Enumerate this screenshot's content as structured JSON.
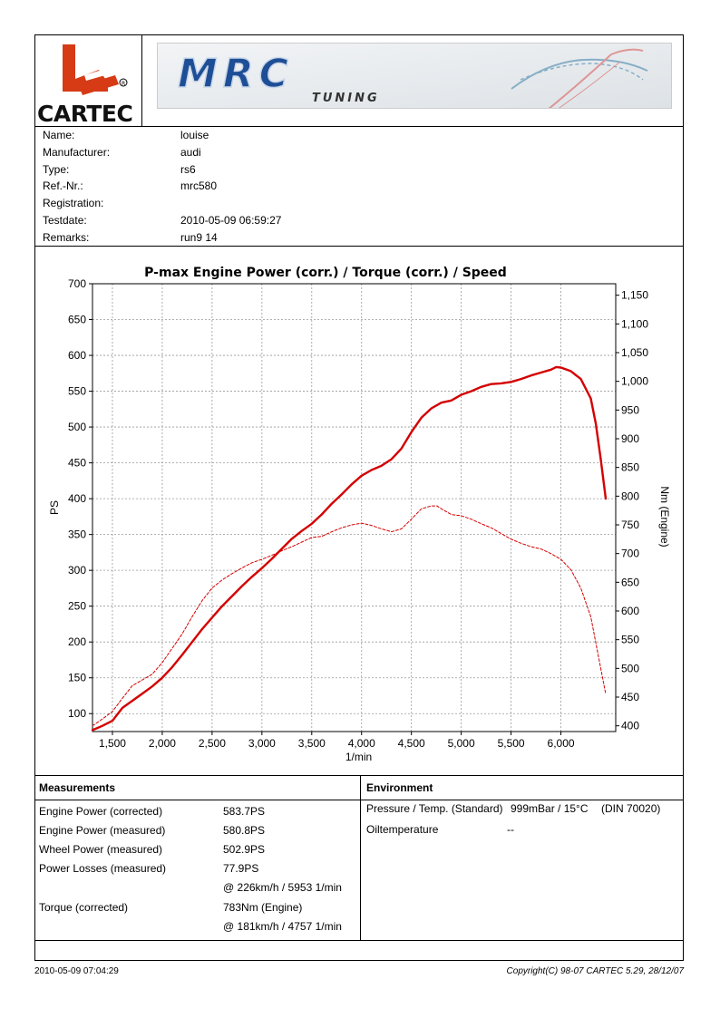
{
  "logo": {
    "brand_text": "CARTEC",
    "banner_text_main": "MRC",
    "banner_text_sub": "TUNING"
  },
  "vehicle": {
    "rows": [
      {
        "label": "Name:",
        "value": "louise"
      },
      {
        "label": "Manufacturer:",
        "value": "audi"
      },
      {
        "label": "Type:",
        "value": "rs6"
      },
      {
        "label": "Ref.-Nr.:",
        "value": "mrc580"
      },
      {
        "label": "Registration:",
        "value": ""
      },
      {
        "label": "Testdate:",
        "value": "2010-05-09 06:59:27"
      },
      {
        "label": "Remarks:",
        "value": "run9 14"
      }
    ]
  },
  "chart_data": {
    "type": "line",
    "title": "P-max Engine Power (corr.) / Torque (corr.) / Speed",
    "xlabel": "1/min",
    "ylabel": "PS",
    "y2label": "Nm (Engine)",
    "xlim": [
      1300,
      6550
    ],
    "ylim": [
      75,
      700
    ],
    "y2lim": [
      390,
      1170
    ],
    "x_ticks": [
      1500,
      2000,
      2500,
      3000,
      3500,
      4000,
      4500,
      5000,
      5500,
      6000
    ],
    "x_tick_labels": [
      "1,500",
      "2,000",
      "2,500",
      "3,000",
      "3,500",
      "4,000",
      "4,500",
      "5,000",
      "5,500",
      "6,000"
    ],
    "y_ticks": [
      100,
      150,
      200,
      250,
      300,
      350,
      400,
      450,
      500,
      550,
      600,
      650,
      700
    ],
    "y_tick_labels": [
      "100",
      "150",
      "200",
      "250",
      "300",
      "350",
      "400",
      "450",
      "500",
      "550",
      "600",
      "650",
      "700"
    ],
    "y2_ticks": [
      400,
      450,
      500,
      550,
      600,
      650,
      700,
      750,
      800,
      850,
      900,
      950,
      1000,
      1050,
      1100,
      1150
    ],
    "y2_tick_labels": [
      "400",
      "450",
      "500",
      "550",
      "600",
      "650",
      "700",
      "750",
      "800",
      "850",
      "900",
      "950",
      "1,000",
      "1,050",
      "1,100",
      "1,150"
    ],
    "grid": true,
    "series": [
      {
        "axis": "y",
        "style": "solid",
        "color": "#d40000",
        "x": [
          1300,
          1400,
          1500,
          1600,
          1700,
          1800,
          1900,
          2000,
          2100,
          2200,
          2300,
          2400,
          2500,
          2600,
          2700,
          2800,
          2900,
          3000,
          3100,
          3200,
          3300,
          3400,
          3500,
          3600,
          3700,
          3800,
          3900,
          4000,
          4100,
          4200,
          4300,
          4400,
          4500,
          4600,
          4700,
          4800,
          4900,
          5000,
          5100,
          5200,
          5300,
          5400,
          5500,
          5600,
          5700,
          5800,
          5900,
          5953,
          6000,
          6100,
          6200,
          6300,
          6350,
          6400,
          6450
        ],
        "values": [
          77,
          83,
          90,
          108,
          118,
          128,
          138,
          150,
          165,
          182,
          200,
          218,
          234,
          250,
          264,
          278,
          291,
          303,
          316,
          330,
          344,
          355,
          365,
          378,
          393,
          406,
          420,
          432,
          440,
          446,
          455,
          470,
          493,
          513,
          526,
          534,
          537,
          545,
          550,
          556,
          560,
          561,
          563,
          567,
          572,
          576,
          580,
          583.7,
          583,
          578,
          567,
          540,
          505,
          455,
          400
        ]
      },
      {
        "axis": "y2",
        "style": "dashed",
        "color": "#d40000",
        "x": [
          1300,
          1400,
          1500,
          1600,
          1700,
          1800,
          1900,
          2000,
          2100,
          2200,
          2300,
          2400,
          2500,
          2600,
          2700,
          2800,
          2900,
          3000,
          3100,
          3200,
          3300,
          3400,
          3500,
          3600,
          3700,
          3800,
          3900,
          4000,
          4100,
          4200,
          4300,
          4400,
          4500,
          4600,
          4700,
          4757,
          4800,
          4900,
          5000,
          5100,
          5200,
          5300,
          5400,
          5500,
          5600,
          5700,
          5800,
          5900,
          6000,
          6100,
          6200,
          6300,
          6350,
          6400,
          6450
        ],
        "values": [
          400,
          412,
          425,
          448,
          470,
          480,
          490,
          510,
          535,
          560,
          590,
          618,
          640,
          654,
          665,
          675,
          684,
          690,
          697,
          705,
          712,
          720,
          728,
          730,
          738,
          745,
          750,
          753,
          749,
          743,
          738,
          743,
          760,
          778,
          783,
          783,
          778,
          768,
          766,
          760,
          752,
          745,
          735,
          725,
          718,
          712,
          708,
          700,
          690,
          672,
          640,
          590,
          545,
          500,
          455
        ]
      }
    ]
  },
  "measurements": {
    "title": "Measurements",
    "rows": [
      {
        "label": "Engine Power (corrected)",
        "value": "583.7PS"
      },
      {
        "label": "Engine Power (measured)",
        "value": "580.8PS"
      },
      {
        "label": "Wheel Power (measured)",
        "value": "502.9PS"
      },
      {
        "label": "Power Losses (measured)",
        "value": "77.9PS"
      },
      {
        "label": "",
        "value": "@ 226km/h / 5953 1/min"
      },
      {
        "label": "Torque (corrected)",
        "value": "783Nm (Engine)"
      },
      {
        "label": "",
        "value": "@ 181km/h / 4757 1/min"
      }
    ]
  },
  "environment": {
    "title": "Environment",
    "pressure_label": "Pressure / Temp. (Standard)",
    "pressure_value": "999mBar / 15°C",
    "pressure_norm": "(DIN 70020)",
    "oil_label": "Oiltemperature",
    "oil_value": "--"
  },
  "footer": {
    "date": "2010-05-09 07:04:29",
    "copyright": "Copyright(C) 98-07 CARTEC 5.29, 28/12/07"
  }
}
